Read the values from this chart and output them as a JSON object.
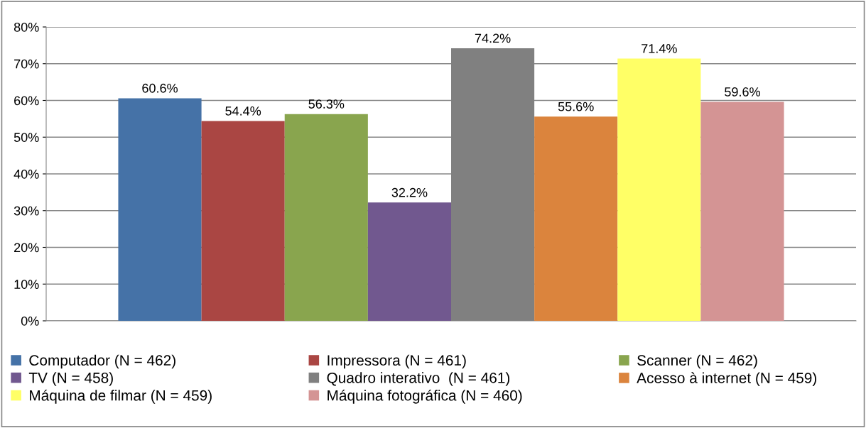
{
  "chart_data": {
    "type": "bar",
    "categories": [
      null
    ],
    "series": [
      {
        "name": "Computador (N = 462)",
        "color": "#4572a7",
        "values": [
          60.6
        ],
        "value_labels": [
          "60.6%"
        ]
      },
      {
        "name": "Impressora (N = 461)",
        "color": "#aa4643",
        "values": [
          54.4
        ],
        "value_labels": [
          "54.4%"
        ]
      },
      {
        "name": "Scanner (N = 462)",
        "color": "#89a54e",
        "values": [
          56.3
        ],
        "value_labels": [
          "56.3%"
        ]
      },
      {
        "name": "TV (N = 458)",
        "color": "#71588f",
        "values": [
          32.2
        ],
        "value_labels": [
          "32.2%"
        ]
      },
      {
        "name": "Quadro interativo  (N = 461)",
        "color": "#808080",
        "values": [
          74.2
        ],
        "value_labels": [
          "74.2%"
        ]
      },
      {
        "name": "Acesso à internet (N = 459)",
        "color": "#db843d",
        "values": [
          55.6
        ],
        "value_labels": [
          "55.6%"
        ]
      },
      {
        "name": "Máquina de filmar (N = 459)",
        "color": "#ffff66",
        "values": [
          71.4
        ],
        "value_labels": [
          "71.4%"
        ]
      },
      {
        "name": "Máquina fotográfica (N = 460)",
        "color": "#d49494",
        "values": [
          59.6
        ],
        "value_labels": [
          "59.6%"
        ]
      }
    ],
    "ylim": [
      0,
      80
    ],
    "yticks": [
      {
        "value": 0,
        "label": "0%"
      },
      {
        "value": 10,
        "label": "10%"
      },
      {
        "value": 20,
        "label": "20%"
      },
      {
        "value": 30,
        "label": "30%"
      },
      {
        "value": 40,
        "label": "40%"
      },
      {
        "value": 50,
        "label": "50%"
      },
      {
        "value": 60,
        "label": "60%"
      },
      {
        "value": 70,
        "label": "70%"
      },
      {
        "value": 80,
        "label": "80%"
      }
    ],
    "grid": "y",
    "legend": "bottom"
  }
}
